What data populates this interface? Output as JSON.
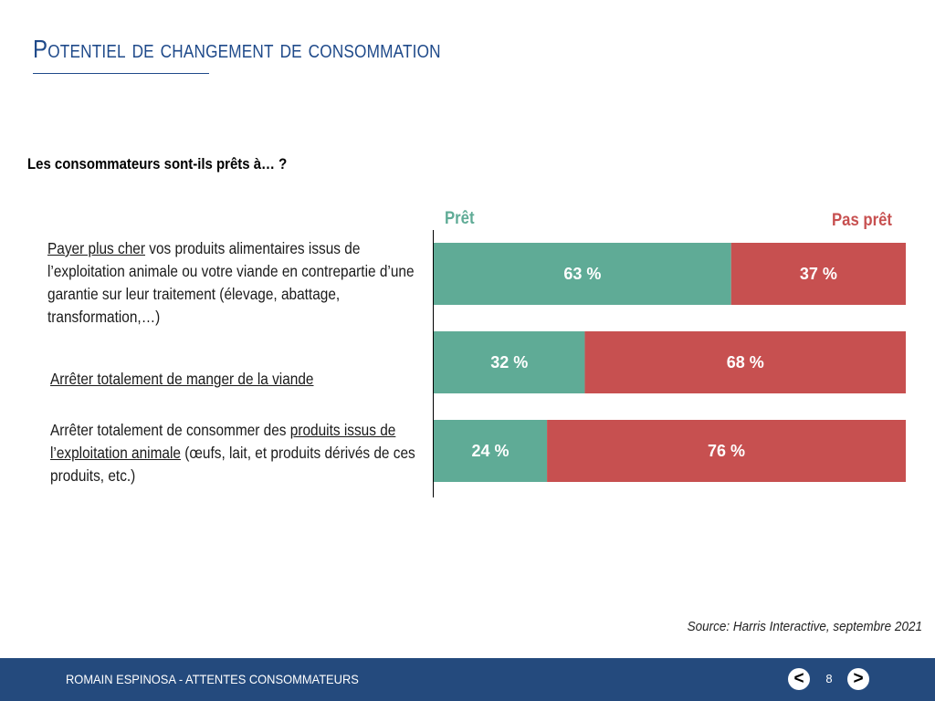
{
  "slide": {
    "title": "Potentiel de changement de consommation",
    "question": "Les consommateurs sont-ils prêts à… ?",
    "source": "Source: Harris Interactive, septembre 2021"
  },
  "footer": {
    "author": "ROMAIN ESPINOSA - ATTENTES CONSOMMATEURS",
    "page": "8",
    "prev_label": "<",
    "next_label": ">"
  },
  "colors": {
    "pret": "#5fab96",
    "pas_pret": "#c75050",
    "title": "#1f4a8a",
    "footer": "#244a7d"
  },
  "chart_data": {
    "type": "bar",
    "orientation": "horizontal",
    "stacked": true,
    "categories": [
      {
        "underlined": "Payer plus cher",
        "rest": " vos produits alimentaires issus de l’exploitation animale ou votre viande en contrepartie d’une garantie sur leur traitement (élevage, abattage, transformation,…)"
      },
      {
        "underlined": "Arrêter totalement de manger de la viande",
        "rest": ""
      },
      {
        "lead": "Arrêter totalement de consommer des ",
        "underlined": "produits issus de l’exploitation animale",
        "rest": " (œufs, lait, et produits dérivés de ces produits, etc.)"
      }
    ],
    "series": [
      {
        "name": "Prêt",
        "color": "#5fab96",
        "values": [
          63,
          32,
          24
        ],
        "labels": [
          "63 %",
          "32 %",
          "24 %"
        ]
      },
      {
        "name": "Pas prêt",
        "color": "#c75050",
        "values": [
          37,
          68,
          76
        ],
        "labels": [
          "37 %",
          "68 %",
          "76 %"
        ]
      }
    ],
    "xlim": [
      0,
      100
    ],
    "legend": "top"
  }
}
